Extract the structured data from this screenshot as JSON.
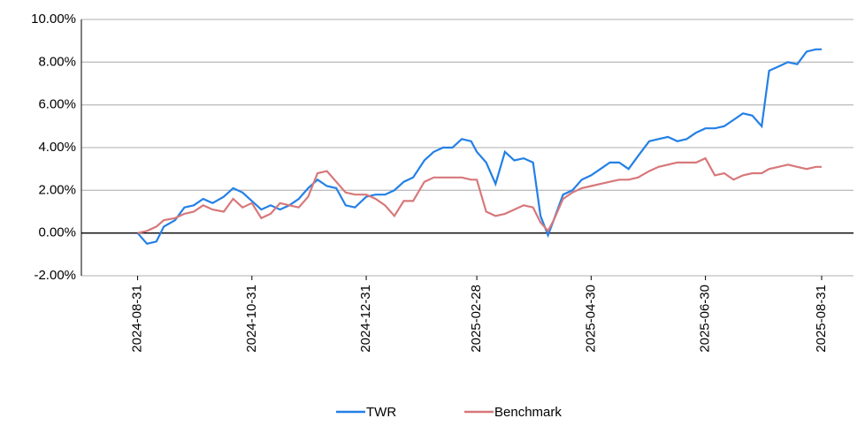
{
  "chart_data": {
    "type": "line",
    "x": [
      "2024-08-31",
      "2024-09-05",
      "2024-09-10",
      "2024-09-14",
      "2024-09-20",
      "2024-09-25",
      "2024-09-30",
      "2024-10-05",
      "2024-10-10",
      "2024-10-16",
      "2024-10-21",
      "2024-10-26",
      "2024-10-31",
      "2024-11-05",
      "2024-11-10",
      "2024-11-15",
      "2024-11-20",
      "2024-11-25",
      "2024-11-30",
      "2024-12-05",
      "2024-12-10",
      "2024-12-15",
      "2024-12-20",
      "2024-12-25",
      "2024-12-31",
      "2025-01-05",
      "2025-01-10",
      "2025-01-15",
      "2025-01-20",
      "2025-01-25",
      "2025-01-31",
      "2025-02-05",
      "2025-02-10",
      "2025-02-15",
      "2025-02-20",
      "2025-02-25",
      "2025-02-28",
      "2025-03-05",
      "2025-03-10",
      "2025-03-15",
      "2025-03-20",
      "2025-03-25",
      "2025-03-30",
      "2025-04-03",
      "2025-04-07",
      "2025-04-10",
      "2025-04-15",
      "2025-04-20",
      "2025-04-25",
      "2025-04-30",
      "2025-05-05",
      "2025-05-10",
      "2025-05-15",
      "2025-05-20",
      "2025-05-25",
      "2025-05-31",
      "2025-06-05",
      "2025-06-10",
      "2025-06-15",
      "2025-06-20",
      "2025-06-25",
      "2025-06-30",
      "2025-07-05",
      "2025-07-10",
      "2025-07-15",
      "2025-07-20",
      "2025-07-25",
      "2025-07-30",
      "2025-08-03",
      "2025-08-08",
      "2025-08-13",
      "2025-08-18",
      "2025-08-23",
      "2025-08-28",
      "2025-08-31"
    ],
    "series": [
      {
        "name": "TWR",
        "color": "#2380e6",
        "values": [
          0.0,
          -0.5,
          -0.4,
          0.3,
          0.6,
          1.2,
          1.3,
          1.6,
          1.4,
          1.7,
          2.1,
          1.9,
          1.5,
          1.1,
          1.3,
          1.1,
          1.3,
          1.6,
          2.1,
          2.5,
          2.2,
          2.1,
          1.3,
          1.2,
          1.7,
          1.8,
          1.8,
          2.0,
          2.4,
          2.6,
          3.4,
          3.8,
          4.0,
          4.0,
          4.4,
          4.3,
          3.8,
          3.3,
          2.3,
          3.8,
          3.4,
          3.5,
          3.3,
          0.8,
          -0.1,
          0.6,
          1.8,
          2.0,
          2.5,
          2.7,
          3.0,
          3.3,
          3.3,
          3.0,
          3.6,
          4.3,
          4.4,
          4.5,
          4.3,
          4.4,
          4.7,
          4.9,
          4.9,
          5.0,
          5.3,
          5.6,
          5.5,
          5.0,
          7.6,
          7.8,
          8.0,
          7.9,
          8.5,
          8.6,
          8.6
        ]
      },
      {
        "name": "Benchmark",
        "color": "#d7787a",
        "values": [
          0.0,
          0.1,
          0.3,
          0.6,
          0.7,
          0.9,
          1.0,
          1.3,
          1.1,
          1.0,
          1.6,
          1.2,
          1.4,
          0.7,
          0.9,
          1.4,
          1.3,
          1.2,
          1.7,
          2.8,
          2.9,
          2.4,
          1.9,
          1.8,
          1.8,
          1.6,
          1.3,
          0.8,
          1.5,
          1.5,
          2.4,
          2.6,
          2.6,
          2.6,
          2.6,
          2.5,
          2.5,
          1.0,
          0.8,
          0.9,
          1.1,
          1.3,
          1.2,
          0.5,
          0.1,
          0.6,
          1.6,
          1.9,
          2.1,
          2.2,
          2.3,
          2.4,
          2.5,
          2.5,
          2.6,
          2.9,
          3.1,
          3.2,
          3.3,
          3.3,
          3.3,
          3.5,
          2.7,
          2.8,
          2.5,
          2.7,
          2.8,
          2.8,
          3.0,
          3.1,
          3.2,
          3.1,
          3.0,
          3.1,
          3.1
        ]
      }
    ],
    "xlim": [
      "2024-08-01",
      "2025-09-17"
    ],
    "xticks": [
      "2024-08-31",
      "2024-10-31",
      "2024-12-31",
      "2025-02-28",
      "2025-04-30",
      "2025-06-30",
      "2025-08-31"
    ],
    "ylim": [
      -2,
      10
    ],
    "yticks": [
      {
        "value": -2,
        "label": "-2.00%"
      },
      {
        "value": 0,
        "label": "0.00%"
      },
      {
        "value": 2,
        "label": "2.00%"
      },
      {
        "value": 4,
        "label": "4.00%"
      },
      {
        "value": 6,
        "label": "6.00%"
      },
      {
        "value": 8,
        "label": "8.00%"
      },
      {
        "value": 10,
        "label": "10.00%"
      }
    ],
    "grid": true,
    "legend": "bottom"
  }
}
